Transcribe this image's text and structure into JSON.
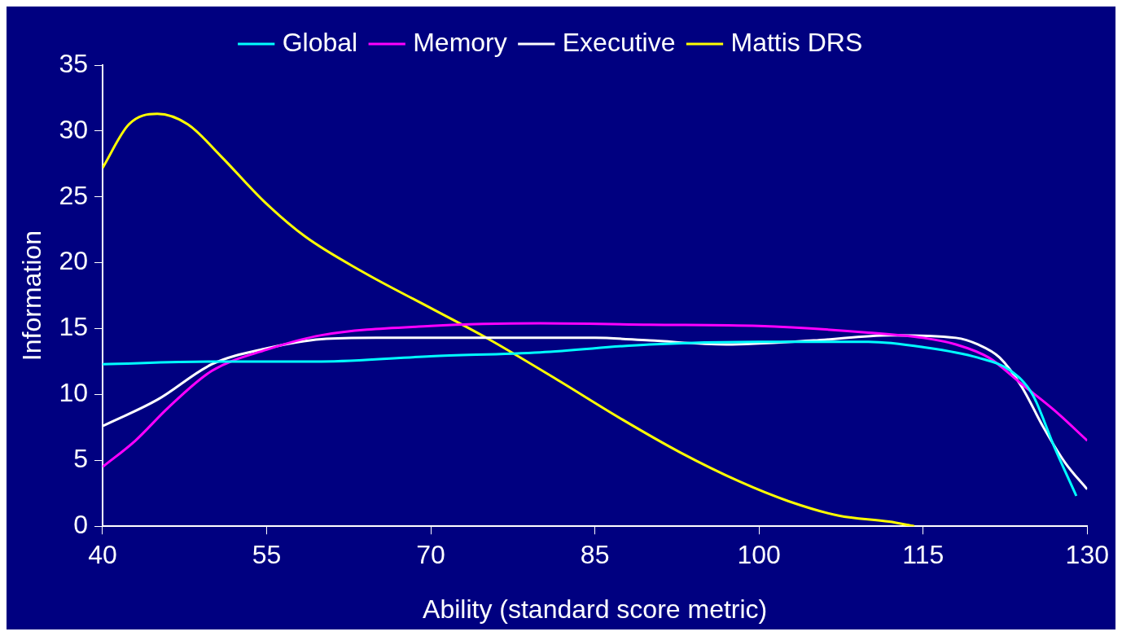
{
  "chart_data": {
    "type": "line",
    "xlabel": "Ability (standard score metric)",
    "ylabel": "Information",
    "xlim": [
      40,
      130
    ],
    "xticks": [
      40,
      55,
      70,
      85,
      100,
      115,
      130
    ],
    "ylim": [
      0,
      35
    ],
    "yticks": [
      0,
      5,
      10,
      15,
      20,
      25,
      30,
      35
    ],
    "grid": false,
    "legend": "top",
    "marker": "none",
    "line_style": "solid",
    "series": [
      {
        "name": "Global",
        "color": "#00ffff",
        "x": [
          40,
          50,
          60,
          70,
          80,
          90,
          100,
          110,
          115,
          120,
          123,
          125,
          127,
          129
        ],
        "values": [
          12.3,
          12.5,
          12.5,
          12.9,
          13.2,
          13.8,
          14.0,
          14.0,
          13.6,
          12.8,
          11.8,
          10.0,
          6.0,
          2.3
        ]
      },
      {
        "name": "Memory",
        "color": "#ff00ff",
        "x": [
          40,
          43,
          46,
          50,
          55,
          60,
          70,
          80,
          90,
          100,
          110,
          115,
          118,
          121,
          124,
          127,
          130
        ],
        "values": [
          4.5,
          6.5,
          9.0,
          11.8,
          13.4,
          14.5,
          15.2,
          15.4,
          15.3,
          15.2,
          14.7,
          14.3,
          13.8,
          12.8,
          10.8,
          8.8,
          6.5
        ]
      },
      {
        "name": "Executive",
        "color": "#ffffff",
        "x": [
          40,
          45,
          50,
          55,
          60,
          65,
          75,
          85,
          90,
          97,
          105,
          112,
          118,
          120,
          122,
          124,
          126,
          128,
          130
        ],
        "values": [
          7.6,
          9.6,
          12.3,
          13.5,
          14.2,
          14.3,
          14.3,
          14.3,
          14.1,
          13.8,
          14.1,
          14.5,
          14.3,
          13.8,
          12.8,
          10.6,
          7.5,
          4.8,
          2.8
        ]
      },
      {
        "name": "Mattis DRS",
        "color": "#ffff00",
        "x": [
          40,
          42.4,
          45,
          47.8,
          50.8,
          54.7,
          58.5,
          63.8,
          69.9,
          75.3,
          81.4,
          87.5,
          92.8,
          98.2,
          102.7,
          107.3,
          111.9,
          114.2
        ],
        "values": [
          27.2,
          30.5,
          31.3,
          30.5,
          28.1,
          24.7,
          22.0,
          19.3,
          16.6,
          14.2,
          11.2,
          8.1,
          5.6,
          3.4,
          1.9,
          0.8,
          0.35,
          0
        ]
      }
    ]
  }
}
